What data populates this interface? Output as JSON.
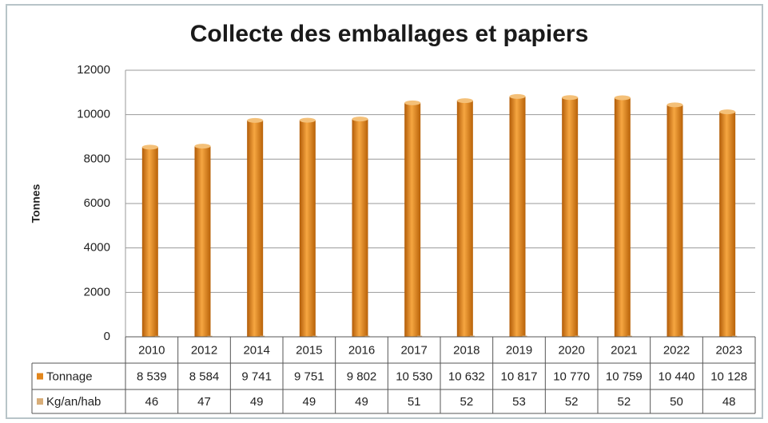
{
  "chart_data": {
    "type": "bar",
    "title": "Collecte des emballages et papiers",
    "y_label": "Tonnes",
    "categories": [
      "2010",
      "2012",
      "2014",
      "2015",
      "2016",
      "2017",
      "2018",
      "2019",
      "2020",
      "2021",
      "2022",
      "2023"
    ],
    "series": [
      {
        "name": "Tonnage",
        "color": "#e2861c",
        "values": [
          8539,
          8584,
          9741,
          9751,
          9802,
          10530,
          10632,
          10817,
          10770,
          10759,
          10440,
          10128
        ],
        "value_labels": [
          "8 539",
          "8 584",
          "9 741",
          "9 751",
          "9 802",
          "10 530",
          "10 632",
          "10 817",
          "10 770",
          "10 759",
          "10 440",
          "10 128"
        ]
      },
      {
        "name": "Kg/an/hab",
        "color": "#d8ad78",
        "values": [
          46,
          47,
          49,
          49,
          49,
          51,
          52,
          53,
          52,
          52,
          50,
          48
        ]
      }
    ],
    "ylim": [
      0,
      12000
    ],
    "yticks": [
      0,
      2000,
      4000,
      6000,
      8000,
      10000,
      12000
    ],
    "grid": true
  }
}
